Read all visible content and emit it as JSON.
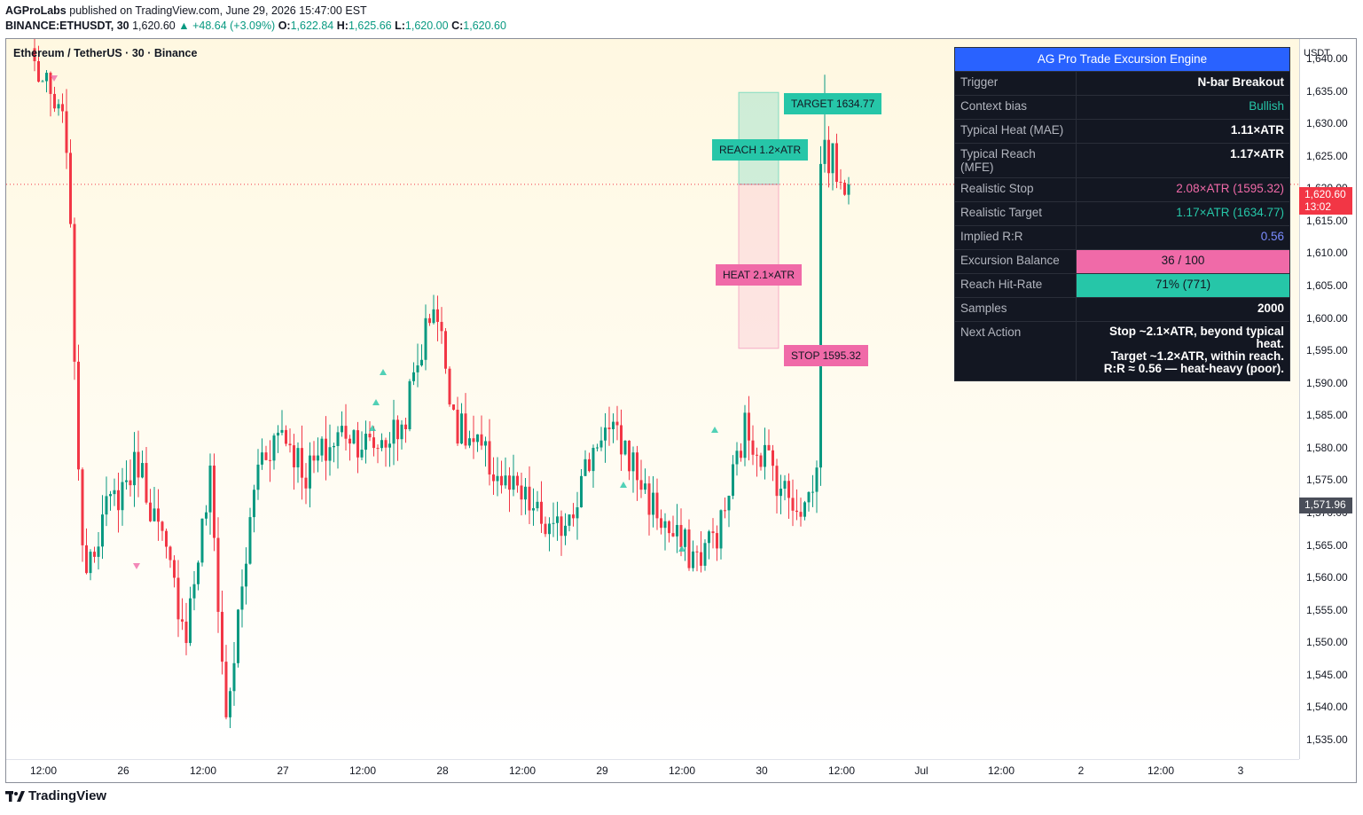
{
  "header": {
    "author": "AGProLabs",
    "published": "published on TradingView.com, June 29, 2026 15:47:00 EST",
    "symbol": "BINANCE:ETHUSDT, 30",
    "price": "1,620.60",
    "change": "▲ +48.64 (+3.09%)",
    "o_label": "O:",
    "o": "1,622.84",
    "h_label": "H:",
    "h": "1,625.66",
    "l_label": "L:",
    "l": "1,620.00",
    "c_label": "C:",
    "c": "1,620.60"
  },
  "chart": {
    "symbol_title": "Ethereum / TetherUS · 30 · Binance",
    "currency": "USDT",
    "last_price": "1,620.60",
    "countdown": "13:02",
    "ref_price": "1,571.96"
  },
  "levels": {
    "target_label": "TARGET  1634.77",
    "reach_label": "REACH  1.2×ATR",
    "heat_label": "HEAT  2.1×ATR",
    "stop_label": "STOP  1595.32"
  },
  "panel": {
    "title": "AG Pro Trade Excursion Engine",
    "rows": [
      {
        "key": "Trigger",
        "value": "N-bar Breakout"
      },
      {
        "key": "Context bias",
        "value": "Bullish"
      },
      {
        "key": "Typical Heat (MAE)",
        "value": "1.11×ATR"
      },
      {
        "key": "Typical Reach (MFE)",
        "value": "1.17×ATR"
      },
      {
        "key": "Realistic Stop",
        "value": "2.08×ATR  (1595.32)"
      },
      {
        "key": "Realistic Target",
        "value": "1.17×ATR  (1634.77)"
      },
      {
        "key": "Implied R:R",
        "value": "0.56"
      },
      {
        "key": "Excursion Balance",
        "value": "36  /  100"
      },
      {
        "key": "Reach Hit-Rate",
        "value": "71%  (771)"
      },
      {
        "key": "Samples",
        "value": "2000"
      },
      {
        "key": "Next Action",
        "value_lines": [
          "Stop ~2.1×ATR, beyond typical heat.",
          "Target ~1.2×ATR, within reach.",
          "R:R ≈ 0.56 — heat-heavy (poor)."
        ]
      }
    ]
  },
  "footer": {
    "brand": "TradingView"
  },
  "colors": {
    "up": "#089981",
    "down": "#f23645",
    "accent": "#2962ff",
    "teal": "#26c6a8",
    "pink": "#f06aa8"
  },
  "chart_data": {
    "type": "candlestick",
    "title": "Ethereum / TetherUS · 30 · Binance",
    "y_axis_ticks": [
      "1,535.00",
      "1,540.00",
      "1,545.00",
      "1,550.00",
      "1,555.00",
      "1,560.00",
      "1,565.00",
      "1,570.00",
      "1,575.00",
      "1,580.00",
      "1,585.00",
      "1,590.00",
      "1,595.00",
      "1,600.00",
      "1,605.00",
      "1,610.00",
      "1,615.00",
      "1,620.00",
      "1,625.00",
      "1,630.00",
      "1,635.00",
      "1,640.00"
    ],
    "x_axis_ticks": [
      "12:00",
      "26",
      "12:00",
      "27",
      "12:00",
      "28",
      "12:00",
      "29",
      "12:00",
      "30",
      "12:00",
      "Jul",
      "12:00",
      "2",
      "12:00",
      "3"
    ],
    "ylim": [
      1532,
      1643
    ],
    "anchors": [
      {
        "t": 0,
        "c": 1639
      },
      {
        "t": 8,
        "c": 1628
      },
      {
        "t": 12,
        "c": 1562
      },
      {
        "t": 18,
        "c": 1570
      },
      {
        "t": 26,
        "c": 1578
      },
      {
        "t": 32,
        "c": 1565
      },
      {
        "t": 38,
        "c": 1552
      },
      {
        "t": 44,
        "c": 1575
      },
      {
        "t": 48,
        "c": 1538
      },
      {
        "t": 56,
        "c": 1578
      },
      {
        "t": 62,
        "c": 1583
      },
      {
        "t": 68,
        "c": 1576
      },
      {
        "t": 78,
        "c": 1583
      },
      {
        "t": 84,
        "c": 1580
      },
      {
        "t": 92,
        "c": 1583
      },
      {
        "t": 100,
        "c": 1603
      },
      {
        "t": 106,
        "c": 1583
      },
      {
        "t": 112,
        "c": 1579
      },
      {
        "t": 118,
        "c": 1574
      },
      {
        "t": 124,
        "c": 1571
      },
      {
        "t": 130,
        "c": 1566
      },
      {
        "t": 136,
        "c": 1573
      },
      {
        "t": 142,
        "c": 1583
      },
      {
        "t": 148,
        "c": 1580
      },
      {
        "t": 154,
        "c": 1572
      },
      {
        "t": 160,
        "c": 1566
      },
      {
        "t": 166,
        "c": 1563
      },
      {
        "t": 172,
        "c": 1568
      },
      {
        "t": 178,
        "c": 1583
      },
      {
        "t": 184,
        "c": 1578
      },
      {
        "t": 188,
        "c": 1573
      },
      {
        "t": 193,
        "c": 1571
      },
      {
        "t": 196,
        "c": 1576
      },
      {
        "t": 197,
        "c": 1626
      },
      {
        "t": 200,
        "c": 1624
      },
      {
        "t": 204,
        "c": 1620.6
      }
    ],
    "zones": {
      "target": 1634.77,
      "entry": 1620.6,
      "stop": 1595.32
    }
  }
}
